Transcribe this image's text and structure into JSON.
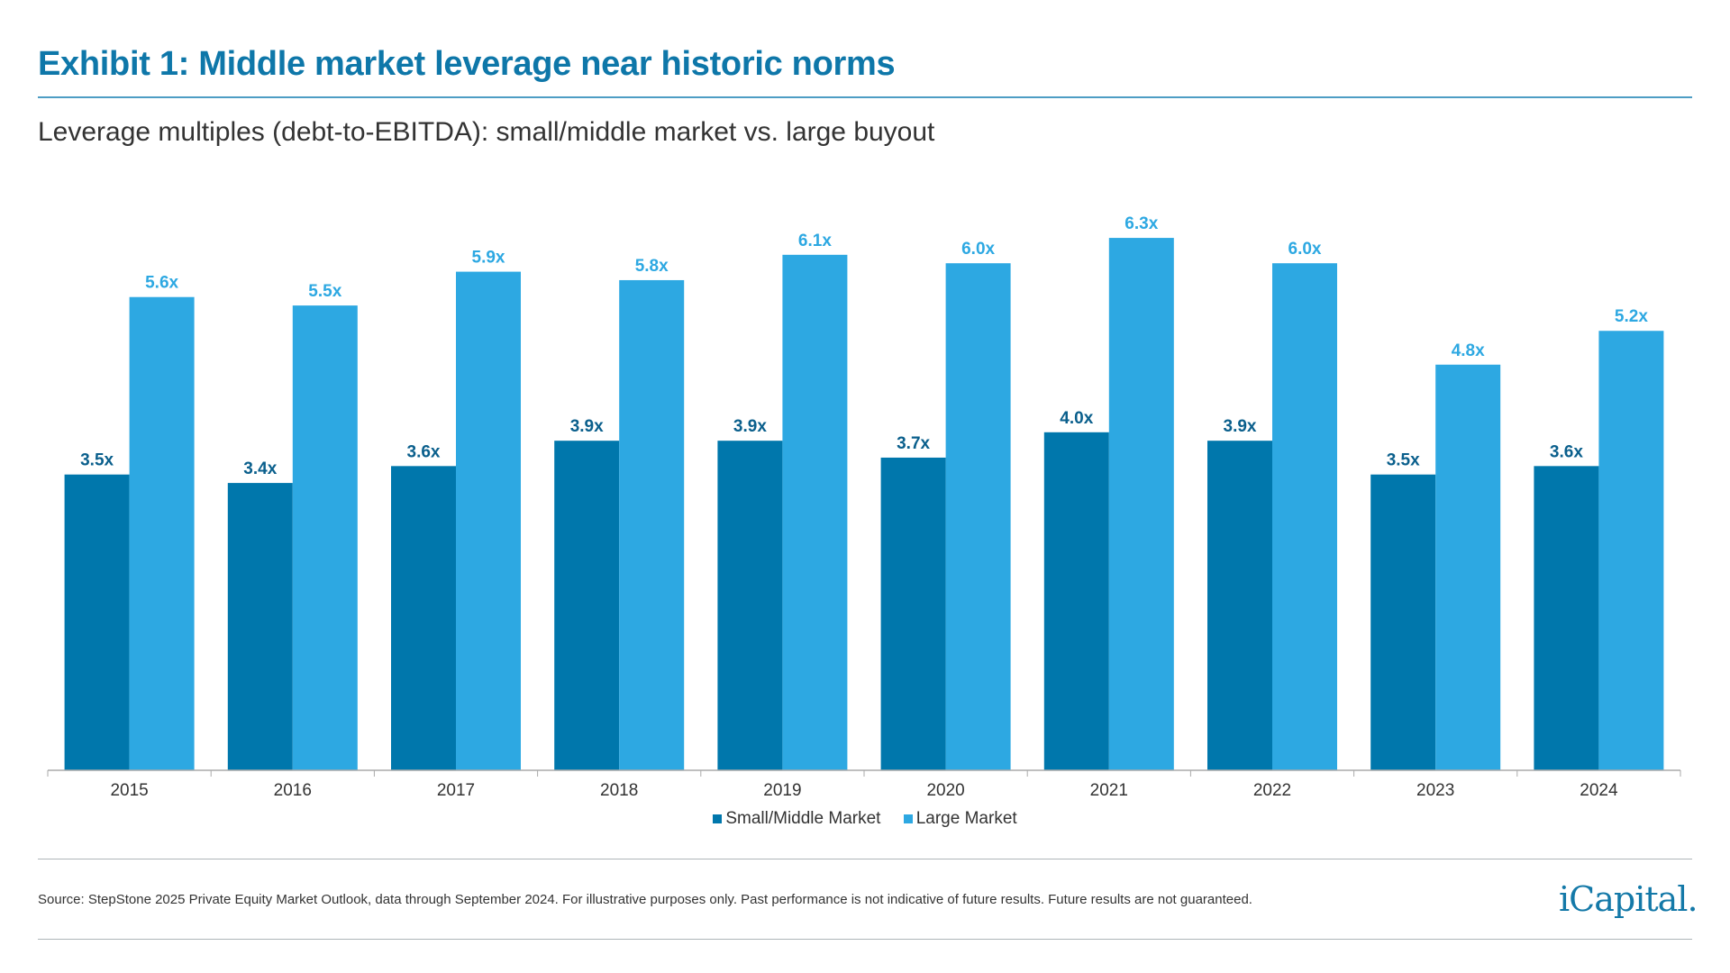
{
  "title": "Exhibit 1: Middle market leverage near historic norms",
  "subtitle": "Leverage multiples (debt-to-EBITDA): small/middle market vs. large buyout",
  "source": "Source: StepStone 2025 Private Equity Market Outlook, data through September 2024. For illustrative purposes only. Past performance is not indicative of future results. Future results are not guaranteed.",
  "logo": "iCapital.",
  "colors": {
    "small_middle": "#0077AC",
    "large": "#2DA8E2",
    "title": "#0E77A9"
  },
  "chart_data": {
    "type": "bar",
    "categories": [
      "2015",
      "2016",
      "2017",
      "2018",
      "2019",
      "2020",
      "2021",
      "2022",
      "2023",
      "2024"
    ],
    "series": [
      {
        "name": "Small/Middle Market",
        "values": [
          3.5,
          3.4,
          3.6,
          3.9,
          3.9,
          3.7,
          4.0,
          3.9,
          3.5,
          3.6
        ],
        "labels": [
          "3.5x",
          "3.4x",
          "3.6x",
          "3.9x",
          "3.9x",
          "3.7x",
          "4.0x",
          "3.9x",
          "3.5x",
          "3.6x"
        ]
      },
      {
        "name": "Large Market",
        "values": [
          5.6,
          5.5,
          5.9,
          5.8,
          6.1,
          6.0,
          6.3,
          6.0,
          4.8,
          5.2
        ],
        "labels": [
          "5.6x",
          "5.5x",
          "5.9x",
          "5.8x",
          "6.1x",
          "6.0x",
          "6.3x",
          "6.0x",
          "4.8x",
          "5.2x"
        ]
      }
    ],
    "ylim": [
      0,
      6.3
    ],
    "grid": false,
    "legend": "bottom"
  }
}
